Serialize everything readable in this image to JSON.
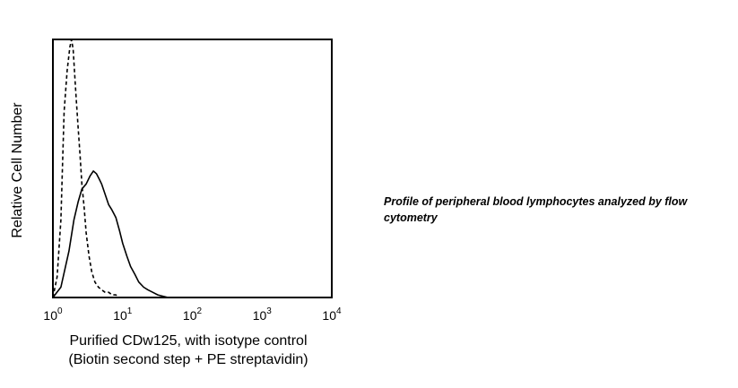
{
  "caption": "Profile of peripheral blood lymphocytes analyzed by flow cytometry",
  "chart_data": {
    "type": "line",
    "title": "",
    "xlabel": [
      "Purified CDw125, with isotype control",
      "(Biotin second step + PE streptavidin)"
    ],
    "ylabel": "Relative Cell Number",
    "x_scale": "log",
    "xlim": [
      1,
      10000
    ],
    "ylim": [
      0,
      100
    ],
    "x_ticks": [
      {
        "base": "10",
        "exp": "0",
        "value": 1
      },
      {
        "base": "10",
        "exp": "1",
        "value": 10
      },
      {
        "base": "10",
        "exp": "2",
        "value": 100
      },
      {
        "base": "10",
        "exp": "3",
        "value": 1000
      },
      {
        "base": "10",
        "exp": "4",
        "value": 10000
      }
    ],
    "grid": false,
    "legend": "none",
    "series": [
      {
        "style": "dashed",
        "color": "#000000",
        "x": [
          1.0,
          1.15,
          1.3,
          1.45,
          1.6,
          1.75,
          1.85,
          1.95,
          2.05,
          2.15,
          2.3,
          2.45,
          2.6,
          2.8,
          3.0,
          3.3,
          3.6,
          4.0,
          4.5,
          5.0,
          5.6,
          6.3,
          7.1,
          8.0,
          9.0
        ],
        "y": [
          0,
          8,
          30,
          72,
          88,
          97,
          100,
          96,
          87,
          78,
          66,
          55,
          44,
          35,
          25,
          16,
          10,
          6,
          4,
          3,
          2,
          2,
          1,
          1,
          0
        ]
      },
      {
        "style": "solid",
        "color": "#000000",
        "x": [
          1.0,
          1.3,
          1.7,
          2.0,
          2.3,
          2.6,
          3.0,
          3.4,
          3.8,
          4.2,
          4.6,
          5.0,
          5.6,
          6.3,
          7.0,
          8.0,
          9.0,
          10.0,
          11.5,
          13.0,
          15.0,
          17.0,
          20.0,
          23.0,
          27.0,
          32.0,
          38.0,
          45.0
        ],
        "y": [
          0,
          4,
          18,
          30,
          37,
          42,
          44,
          47,
          49,
          48,
          46,
          44,
          40,
          36,
          34,
          31,
          26,
          21,
          16,
          12,
          9,
          6,
          4,
          3,
          2,
          1,
          0.5,
          0
        ]
      }
    ]
  }
}
